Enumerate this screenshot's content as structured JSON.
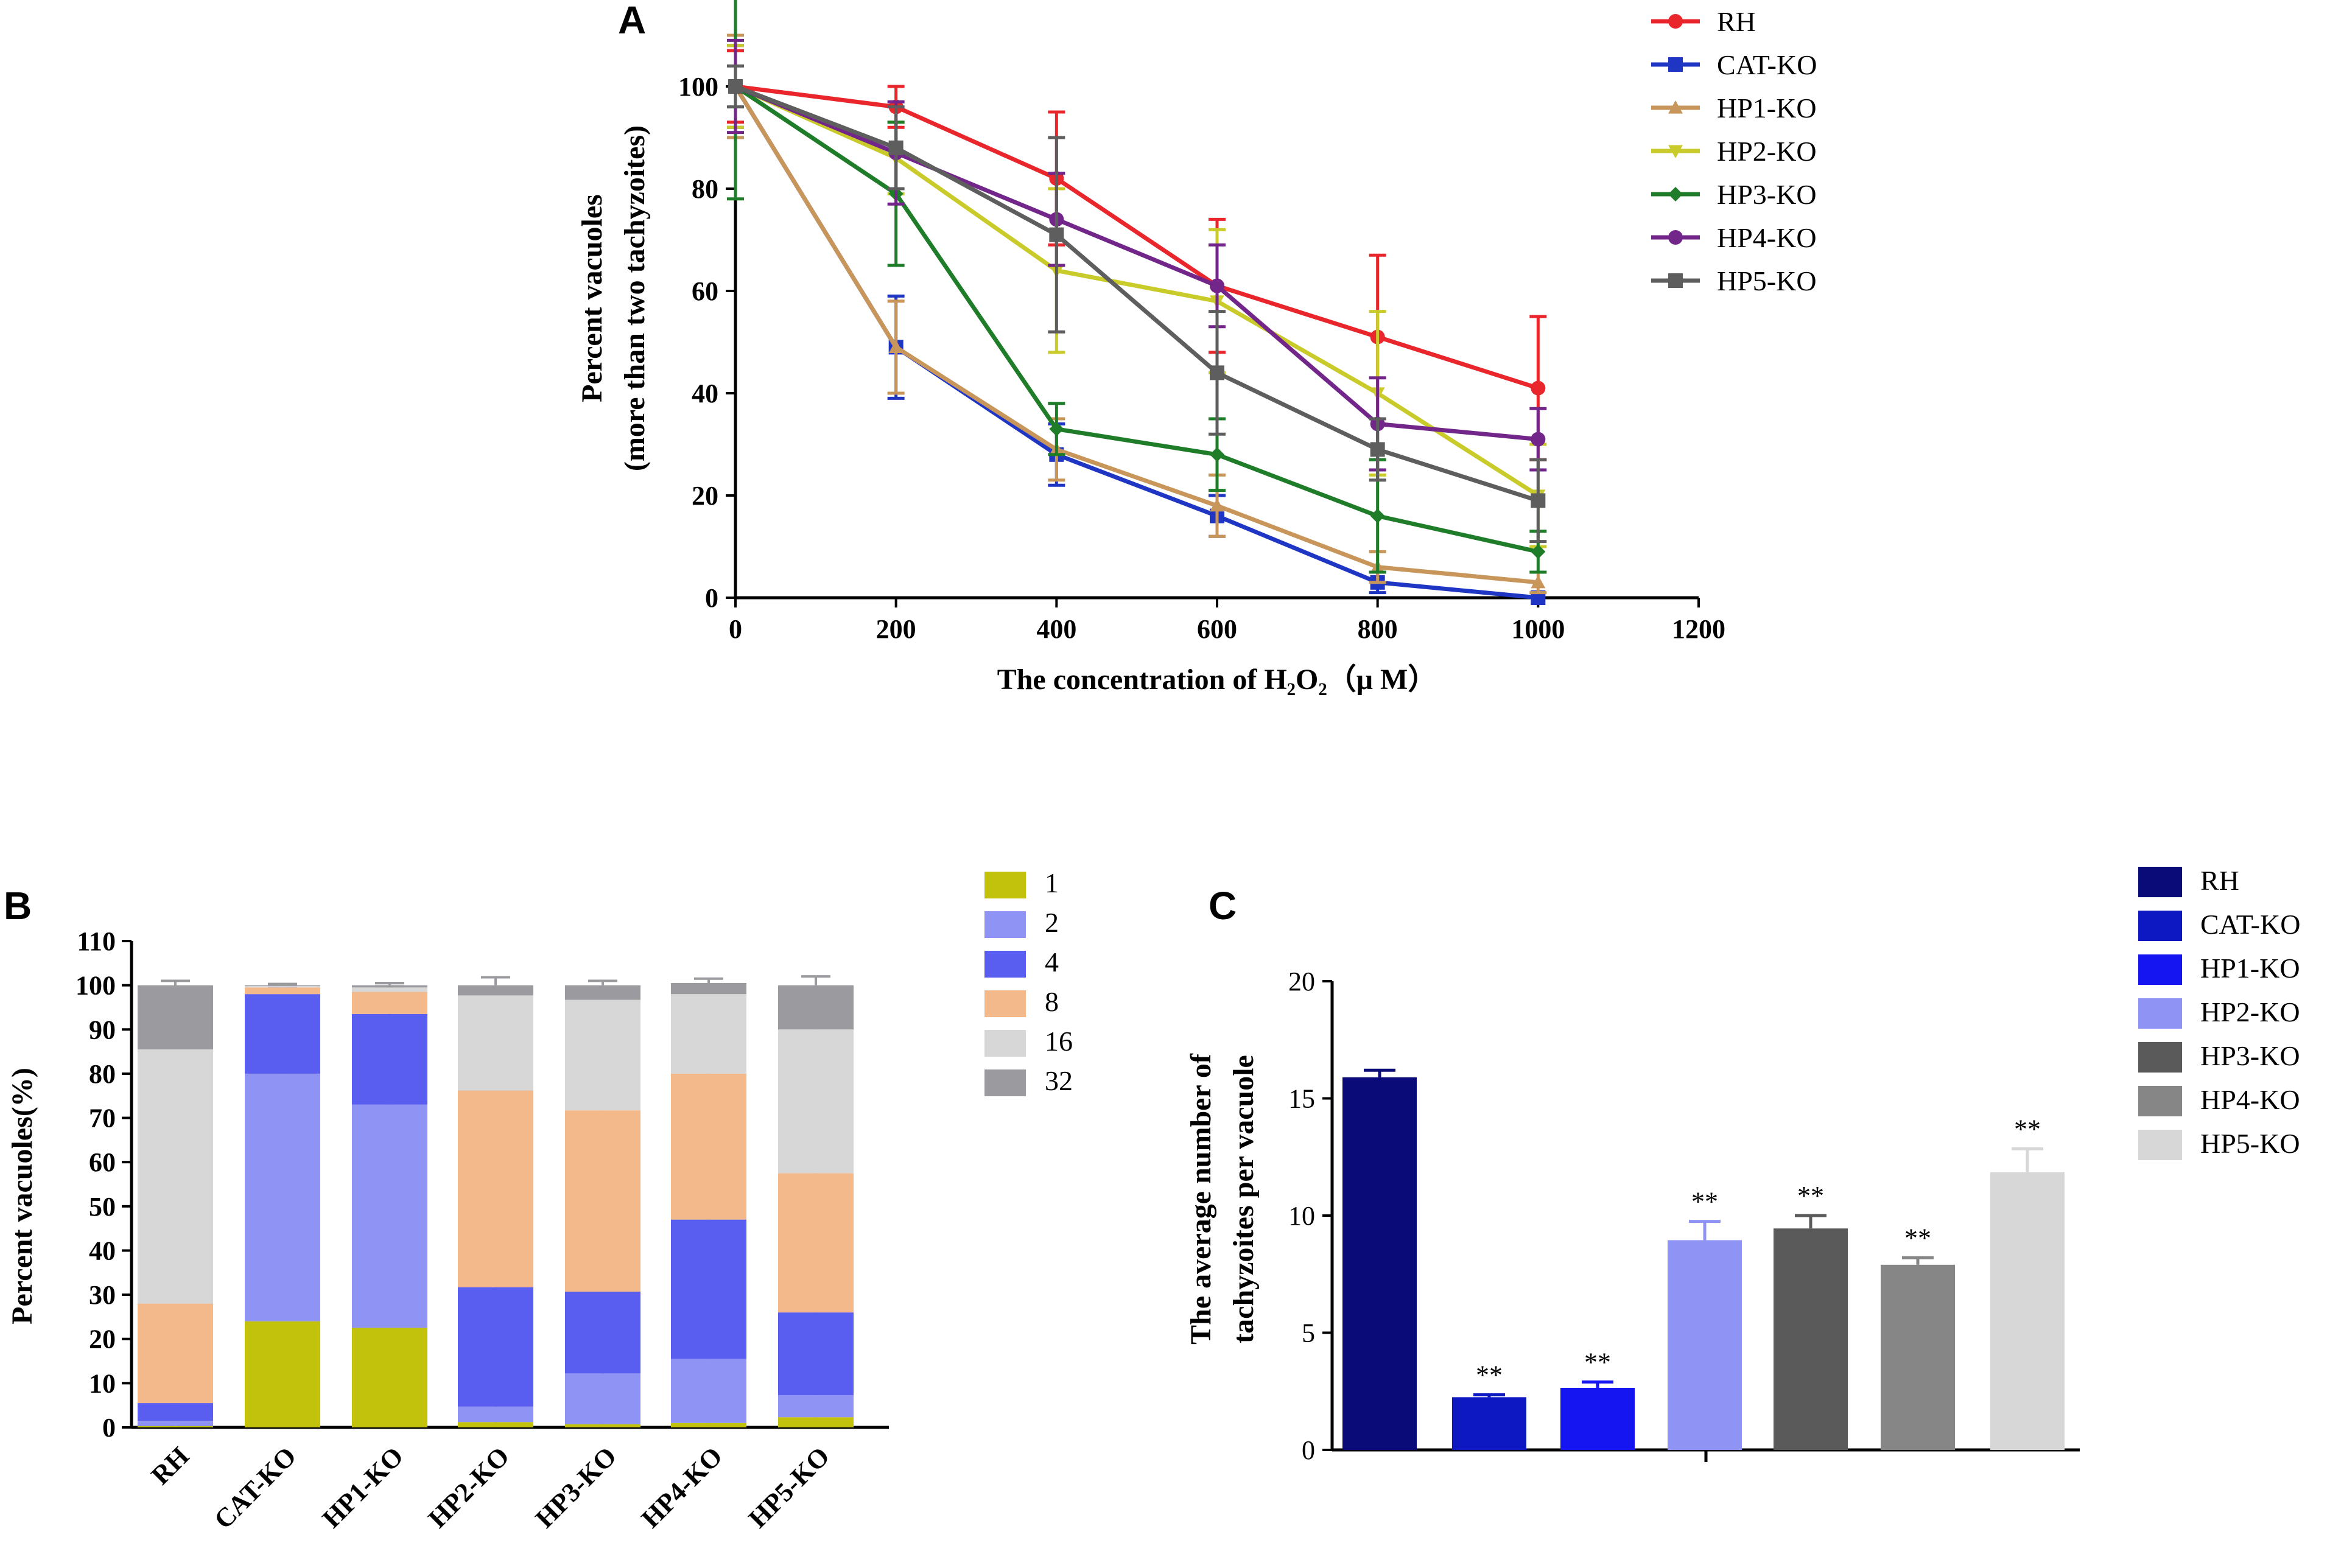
{
  "figure": {
    "panel_letters": [
      "A",
      "B",
      "C"
    ]
  },
  "chart_data": [
    {
      "panel": "A",
      "type": "line",
      "title": "",
      "xlabel": "The concentration of H₂O₂（μ M）",
      "ylabel_lines": [
        "Percent vacuoles",
        "(more than two tachyzoites)"
      ],
      "xlim": [
        0,
        1200
      ],
      "ylim": [
        0,
        110
      ],
      "x_ticks": [
        0,
        200,
        400,
        600,
        800,
        1000,
        1200
      ],
      "y_ticks": [
        0,
        20,
        40,
        60,
        80,
        100
      ],
      "x": [
        0,
        200,
        400,
        600,
        800,
        1000
      ],
      "legend_position": "right",
      "series": [
        {
          "name": "RH",
          "color": "#e8262b",
          "marker": "circle",
          "values": [
            100,
            96,
            82,
            61,
            51,
            41
          ],
          "errors": [
            7,
            4,
            13,
            13,
            16,
            14
          ]
        },
        {
          "name": "CAT-KO",
          "color": "#1f36c4",
          "marker": "square",
          "values": [
            100,
            49,
            28,
            16,
            3,
            0
          ],
          "errors": [
            8,
            10,
            6,
            4,
            2,
            0
          ]
        },
        {
          "name": "HP1-KO",
          "color": "#c8965a",
          "marker": "triangle-up",
          "values": [
            100,
            49,
            29,
            18,
            6,
            3
          ],
          "errors": [
            10,
            9,
            6,
            6,
            3,
            2
          ]
        },
        {
          "name": "HP2-KO",
          "color": "#c9cb2a",
          "marker": "triangle-down",
          "values": [
            100,
            86,
            64,
            58,
            40,
            20
          ],
          "errors": [
            8,
            7,
            16,
            14,
            16,
            10
          ]
        },
        {
          "name": "HP3-KO",
          "color": "#1f7d2a",
          "marker": "diamond",
          "values": [
            100,
            79,
            33,
            28,
            16,
            9
          ],
          "errors": [
            22,
            14,
            5,
            7,
            11,
            4
          ]
        },
        {
          "name": "HP4-KO",
          "color": "#73268a",
          "marker": "circle",
          "values": [
            100,
            87,
            74,
            61,
            34,
            31
          ],
          "errors": [
            9,
            10,
            9,
            8,
            9,
            6
          ]
        },
        {
          "name": "HP5-KO",
          "color": "#5e5e5e",
          "marker": "square",
          "values": [
            100,
            88,
            71,
            44,
            29,
            19
          ],
          "errors": [
            4,
            8,
            19,
            12,
            6,
            8
          ]
        }
      ]
    },
    {
      "panel": "B",
      "type": "bar",
      "stacked": true,
      "ylabel": "Percent vacuoles(%)",
      "ylim": [
        0,
        110
      ],
      "y_ticks": [
        0,
        10,
        20,
        30,
        40,
        50,
        60,
        70,
        80,
        90,
        100,
        110
      ],
      "categories": [
        "RH",
        "CAT-KO",
        "HP1-KO",
        "HP2-KO",
        "HP3-KO",
        "HP4-KO",
        "HP5-KO"
      ],
      "legend_position": "right",
      "series": [
        {
          "name": "1",
          "color": "#c2c10c",
          "values": [
            0.3,
            24,
            22.5,
            1.2,
            0.7,
            1.0,
            2.3
          ],
          "errors": [
            0.5,
            5.5,
            5.0,
            0.7,
            0.8,
            1.3,
            1.0
          ]
        },
        {
          "name": "2",
          "color": "#8e93f4",
          "values": [
            1.2,
            56,
            50.5,
            3.5,
            11.5,
            14.5,
            5.0
          ],
          "errors": [
            0.8,
            7.0,
            4.5,
            0.8,
            1.2,
            1.5,
            1.5
          ]
        },
        {
          "name": "4",
          "color": "#5a5ef0",
          "values": [
            4.0,
            18,
            20.5,
            27,
            18.5,
            31.5,
            18.7
          ],
          "errors": [
            1.0,
            1.5,
            1.5,
            5.0,
            2.0,
            3.5,
            2.5
          ]
        },
        {
          "name": "8",
          "color": "#f4b98a",
          "values": [
            22.5,
            1.5,
            5.0,
            44.5,
            41,
            33,
            31.5
          ],
          "errors": [
            2.5,
            0.8,
            1.0,
            2.0,
            3.8,
            6.0,
            6.0
          ]
        },
        {
          "name": "16",
          "color": "#d7d7d7",
          "values": [
            57.5,
            0.3,
            1.0,
            21.5,
            25,
            18,
            32.5
          ],
          "errors": [
            2.0,
            0.3,
            0.4,
            1.5,
            1.0,
            1.0,
            5.5
          ]
        },
        {
          "name": "32",
          "color": "#9b9b9f",
          "values": [
            14.5,
            0.2,
            0.5,
            2.3,
            3.3,
            2.5,
            10
          ],
          "errors": [
            1.0,
            0.3,
            0.5,
            1.8,
            1.0,
            1.0,
            2.0
          ]
        }
      ]
    },
    {
      "panel": "C",
      "type": "bar",
      "ylabel_lines": [
        "The average number of",
        "tachyzoites per vacuole"
      ],
      "ylim": [
        0,
        20
      ],
      "y_ticks": [
        0,
        5,
        10,
        15,
        20
      ],
      "categories": [
        "RH",
        "CAT-KO",
        "HP1-KO",
        "HP2-KO",
        "HP3-KO",
        "HP4-KO",
        "HP5-KO"
      ],
      "values": [
        15.9,
        2.25,
        2.65,
        8.95,
        9.45,
        7.9,
        11.85
      ],
      "errors": [
        0.3,
        0.1,
        0.25,
        0.8,
        0.55,
        0.3,
        1.0
      ],
      "colors": [
        "#0a0a78",
        "#0d17c2",
        "#1515f2",
        "#8e93f4",
        "#5a5a5a",
        "#868686",
        "#d7d7d7"
      ],
      "significance": [
        "",
        "**",
        "**",
        "**",
        "**",
        "**",
        "**"
      ],
      "legend_position": "right"
    }
  ]
}
